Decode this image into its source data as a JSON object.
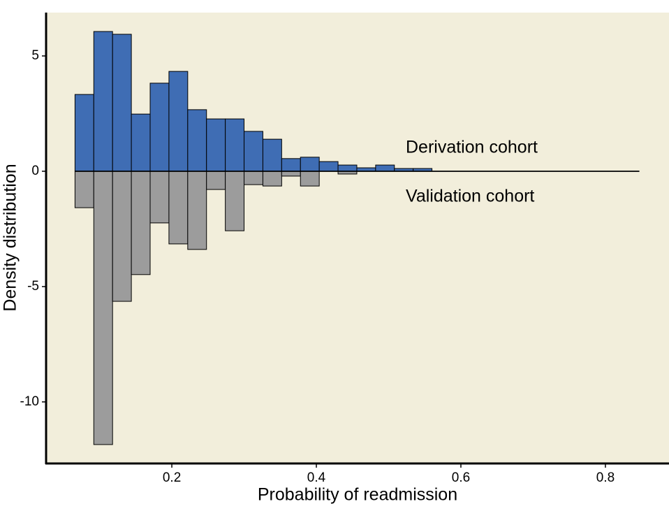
{
  "chart_data": {
    "type": "histogram",
    "x_label": "Probability of readmission",
    "y_label": "Density distribution",
    "bins": [
      0.066,
      0.092,
      0.118,
      0.144,
      0.17,
      0.196,
      0.222,
      0.248,
      0.274,
      0.3,
      0.326,
      0.352,
      0.378,
      0.404,
      0.43,
      0.456,
      0.482,
      0.508,
      0.534,
      0.56
    ],
    "series": [
      {
        "name": "Derivation cohort",
        "color": "#3f6db4",
        "values": [
          3.33,
          6.06,
          5.94,
          2.48,
          3.82,
          4.33,
          2.67,
          2.27,
          2.27,
          1.73,
          1.39,
          0.55,
          0.61,
          0.42,
          0.27,
          0.15,
          0.27,
          0.12,
          0.12
        ]
      },
      {
        "name": "Validation cohort",
        "color": "#9c9c9c",
        "values": [
          -1.58,
          -11.85,
          -5.64,
          -4.48,
          -2.24,
          -3.15,
          -3.39,
          -0.79,
          -2.58,
          -0.58,
          -0.64,
          -0.21,
          -0.64,
          0,
          -0.12,
          0,
          0,
          0,
          0
        ]
      }
    ],
    "reference_line": {
      "y": 0,
      "x": [
        0.066,
        0.847
      ]
    },
    "xlim": [
      0.026,
      0.888
    ],
    "ylim": [
      -12.67,
      6.88
    ],
    "xticks": [
      0.2,
      0.4,
      0.6,
      0.8
    ],
    "yticks": [
      5,
      0,
      -5,
      -10
    ],
    "background": "#f2eedb"
  }
}
